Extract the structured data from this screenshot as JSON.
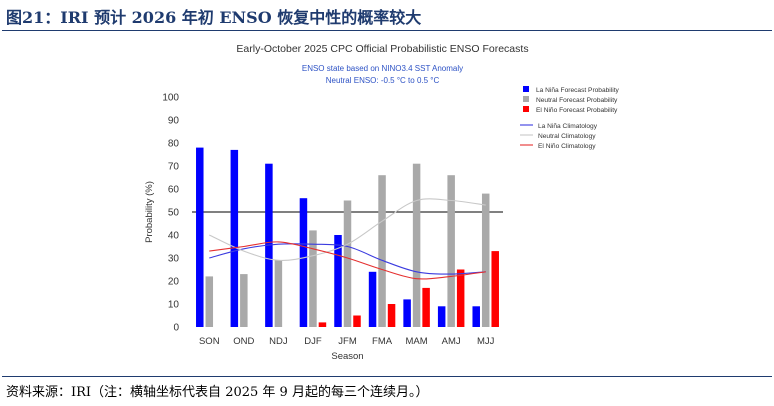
{
  "figure": {
    "title": "图21：IRI 预计 2026 年初 ENSO 恢复中性的概率较大",
    "source": "资料来源：IRI（注：横轴坐标代表自 2025 年 9 月起的每三个连续月。）"
  },
  "chart_data": {
    "type": "bar",
    "title": "Early-October 2025 CPC Official Probabilistic ENSO Forecasts",
    "subtitle_lines": [
      "ENSO state based on NINO3.4 SST Anomaly",
      "Neutral ENSO: -0.5 °C to 0.5 °C"
    ],
    "xlabel": "Season",
    "ylabel": "Probability (%)",
    "ylim": [
      0,
      100
    ],
    "yticks": [
      0,
      10,
      20,
      30,
      40,
      50,
      60,
      70,
      80,
      90,
      100
    ],
    "reference_line": 50,
    "categories": [
      "SON",
      "OND",
      "NDJ",
      "DJF",
      "JFM",
      "FMA",
      "MAM",
      "AMJ",
      "MJJ"
    ],
    "series": [
      {
        "name": "La Niña Forecast Probability",
        "color": "#0000ff",
        "values": [
          78,
          77,
          71,
          56,
          40,
          24,
          12,
          9,
          9
        ]
      },
      {
        "name": "Neutral Forecast Probability",
        "color": "#a9a9a9",
        "values": [
          22,
          23,
          29,
          42,
          55,
          66,
          71,
          66,
          58
        ]
      },
      {
        "name": "El Niño Forecast Probability",
        "color": "#ff0000",
        "values": [
          0,
          0,
          0,
          2,
          5,
          10,
          17,
          25,
          33
        ]
      }
    ],
    "climatology": [
      {
        "name": "La Niña Climatology",
        "color": "#3b3bdf",
        "values": [
          30,
          34,
          36,
          36,
          35,
          29,
          24,
          23,
          24
        ]
      },
      {
        "name": "Neutral Climatology",
        "color": "#c8c8c8",
        "values": [
          40,
          33,
          29,
          31,
          36,
          46,
          55,
          55,
          53
        ]
      },
      {
        "name": "El Niño Climatology",
        "color": "#e53030",
        "values": [
          33,
          35,
          37,
          34,
          30,
          25,
          21,
          22,
          24
        ]
      }
    ],
    "legend_position": "top-right",
    "grid": false
  }
}
